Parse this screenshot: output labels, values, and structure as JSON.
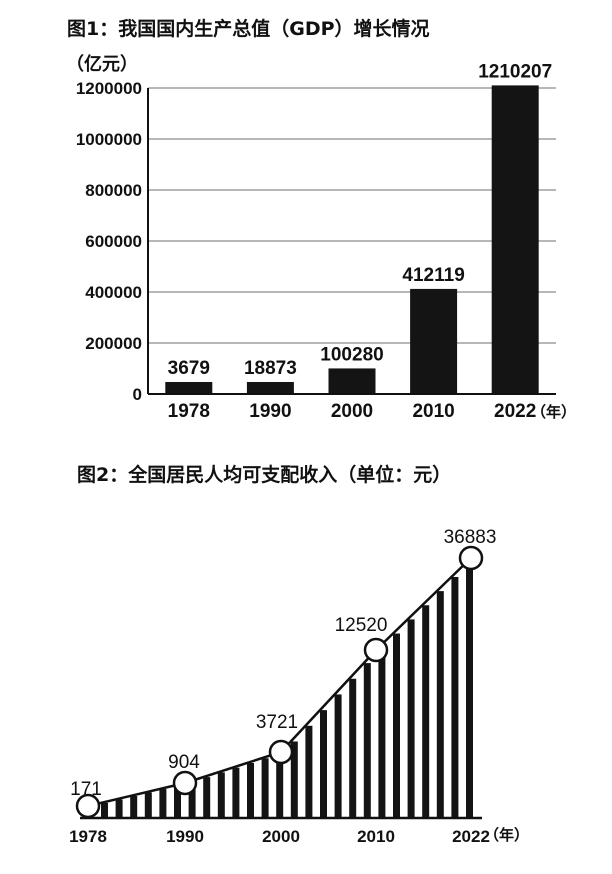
{
  "chart_data": [
    {
      "type": "bar",
      "title": "图1：我国国内生产总值（GDP）增长情况",
      "ylabel": "（亿元）",
      "xunit": "（年）",
      "categories": [
        "1978",
        "1990",
        "2000",
        "2010",
        "2022"
      ],
      "values": [
        3679,
        18873,
        100280,
        412119,
        1210207
      ],
      "ylim": [
        0,
        1200000
      ],
      "yticks": [
        "0",
        "200000",
        "400000",
        "600000",
        "800000",
        "1000000",
        "1200000"
      ],
      "grid": true,
      "bar_color": "#141414"
    },
    {
      "type": "line",
      "title": "图2：全国居民人均可支配收入（单位：元）",
      "xunit": "（年）",
      "categories": [
        "1978",
        "1990",
        "2000",
        "2010",
        "2022"
      ],
      "highlight_values": [
        171,
        904,
        3721,
        12520,
        36883
      ],
      "highlight_labels": [
        "171",
        "904",
        "3721",
        "12520",
        "36883"
      ],
      "ylim": [
        0,
        40000
      ],
      "line_color": "#141414"
    }
  ]
}
